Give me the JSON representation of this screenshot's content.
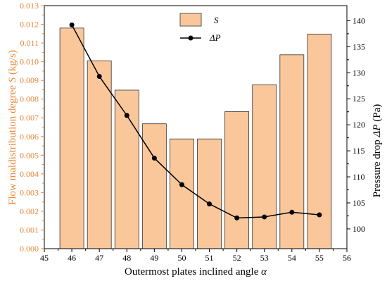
{
  "chart_data": {
    "type": "bar",
    "categories": [
      46,
      47,
      48,
      49,
      50,
      51,
      52,
      53,
      54,
      55
    ],
    "series": [
      {
        "name": "S",
        "type": "bar",
        "axis": "left",
        "color": "#f9c79a",
        "values": [
          0.0118,
          0.01005,
          0.00848,
          0.00668,
          0.00587,
          0.00587,
          0.00733,
          0.00877,
          0.01037,
          0.01148
        ]
      },
      {
        "name": "ΔP",
        "type": "line",
        "axis": "right",
        "color": "#000000",
        "values": [
          139.2,
          129.3,
          121.8,
          113.6,
          108.5,
          104.8,
          102.1,
          102.3,
          103.2,
          102.7
        ]
      }
    ],
    "xlabel": {
      "text": "Outermost plates inclined angle ",
      "symbol": "α"
    },
    "ylabel_left": {
      "pre": "Flow maldistribution degree ",
      "symbol": "S",
      "post": " (kg/s)"
    },
    "ylabel_right": {
      "pre": "Pressure drop ",
      "symbol": "ΔP",
      "post": " (Pa)"
    },
    "xlim": [
      45,
      56
    ],
    "ylim_left": [
      0,
      0.013
    ],
    "ylim_right": [
      96.2,
      142.9
    ],
    "x_ticks": [
      "45",
      "46",
      "47",
      "48",
      "49",
      "50",
      "51",
      "52",
      "53",
      "54",
      "55",
      "56"
    ],
    "y_left_ticks": [
      "0.000",
      "0.001",
      "0.002",
      "0.003",
      "0.004",
      "0.005",
      "0.006",
      "0.007",
      "0.008",
      "0.009",
      "0.010",
      "0.011",
      "0.012",
      "0.013"
    ],
    "y_right_ticks": [
      "100",
      "105",
      "110",
      "115",
      "120",
      "125",
      "130",
      "135",
      "140"
    ],
    "left_axis_color": "#e6893a",
    "legend_position": "top-center",
    "grid": false
  }
}
